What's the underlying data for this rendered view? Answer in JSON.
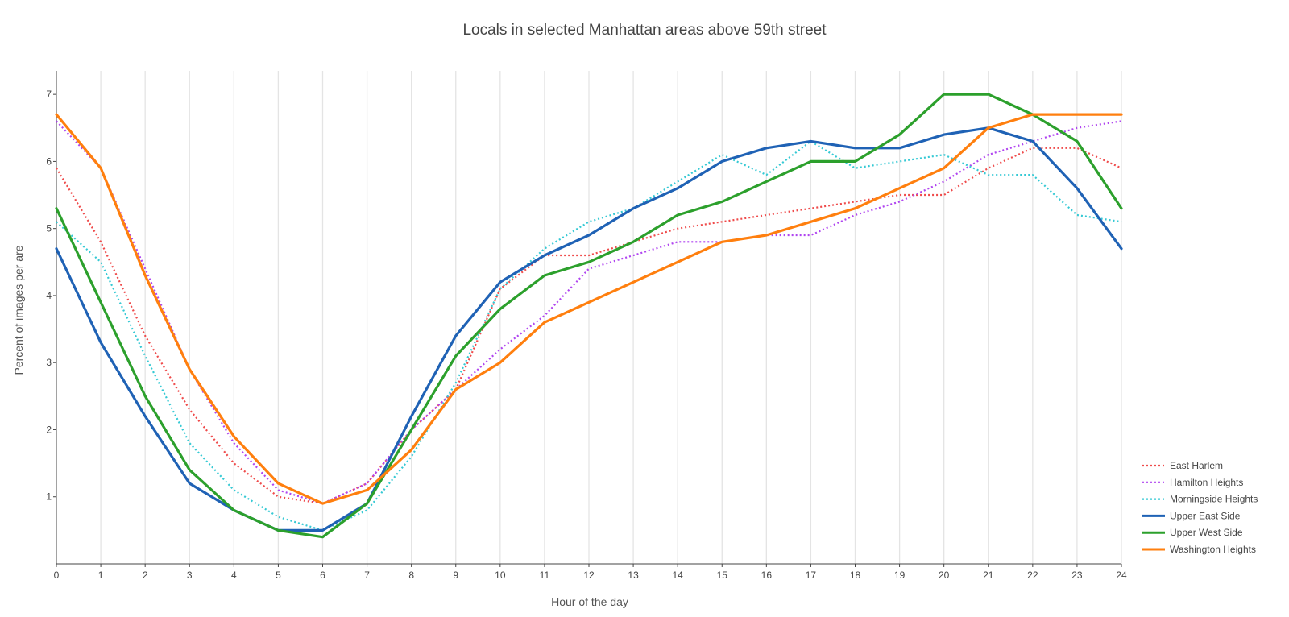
{
  "chart_data": {
    "type": "line",
    "title": "Locals in selected Manhattan areas above 59th street",
    "xlabel": "Hour of the day",
    "ylabel": "Percent of images per are",
    "xlim": [
      0,
      24
    ],
    "ylim": [
      0,
      7.35
    ],
    "x": [
      0,
      1,
      2,
      3,
      4,
      5,
      6,
      7,
      8,
      9,
      10,
      11,
      12,
      13,
      14,
      15,
      16,
      17,
      18,
      19,
      20,
      21,
      22,
      23,
      24
    ],
    "x_ticks": [
      "0",
      "1",
      "2",
      "3",
      "4",
      "5",
      "6",
      "7",
      "8",
      "9",
      "10",
      "11",
      "12",
      "13",
      "14",
      "15",
      "16",
      "17",
      "18",
      "19",
      "20",
      "21",
      "22",
      "23",
      "24"
    ],
    "y_ticks": [
      1,
      2,
      3,
      4,
      5,
      6,
      7
    ],
    "y_tick_labels": [
      "1",
      "2",
      "3",
      "4",
      "5",
      "6",
      "7"
    ],
    "grid": "vertical",
    "legend_position": "bottom-right",
    "series": [
      {
        "name": "East Harlem",
        "color": "#ef4b4b",
        "dash": "dotted",
        "values": [
          5.9,
          4.8,
          3.4,
          2.3,
          1.5,
          1.0,
          0.9,
          1.2,
          2.0,
          2.6,
          4.1,
          4.6,
          4.6,
          4.8,
          5.0,
          5.1,
          5.2,
          5.3,
          5.4,
          5.5,
          5.5,
          5.9,
          6.2,
          6.2,
          5.9
        ]
      },
      {
        "name": "Hamilton Heights",
        "color": "#b045f0",
        "dash": "dotted",
        "values": [
          6.6,
          5.9,
          4.4,
          2.9,
          1.8,
          1.1,
          0.9,
          1.2,
          2.0,
          2.6,
          3.2,
          3.7,
          4.4,
          4.6,
          4.8,
          4.8,
          4.9,
          4.9,
          5.2,
          5.4,
          5.7,
          6.1,
          6.3,
          6.5,
          6.6
        ]
      },
      {
        "name": "Morningside Heights",
        "color": "#35c9d4",
        "dash": "dotted",
        "values": [
          5.1,
          4.5,
          3.1,
          1.8,
          1.1,
          0.7,
          0.5,
          0.8,
          1.6,
          2.7,
          4.1,
          4.7,
          5.1,
          5.3,
          5.7,
          6.1,
          5.8,
          6.3,
          5.9,
          6.0,
          6.1,
          5.8,
          5.8,
          5.2,
          5.1
        ]
      },
      {
        "name": "Upper East Side",
        "color": "#1f62b5",
        "dash": "solid",
        "values": [
          4.7,
          3.3,
          2.2,
          1.2,
          0.8,
          0.5,
          0.5,
          0.9,
          2.2,
          3.4,
          4.2,
          4.6,
          4.9,
          5.3,
          5.6,
          6.0,
          6.2,
          6.3,
          6.2,
          6.2,
          6.4,
          6.5,
          6.3,
          5.6,
          4.7
        ]
      },
      {
        "name": "Upper West Side",
        "color": "#2ca02c",
        "dash": "solid",
        "values": [
          5.3,
          3.9,
          2.5,
          1.4,
          0.8,
          0.5,
          0.4,
          0.9,
          2.0,
          3.1,
          3.8,
          4.3,
          4.5,
          4.8,
          5.2,
          5.4,
          5.7,
          6.0,
          6.0,
          6.4,
          7.0,
          7.0,
          6.7,
          6.3,
          5.3
        ]
      },
      {
        "name": "Washington Heights",
        "color": "#ff7f0e",
        "dash": "solid",
        "values": [
          6.7,
          5.9,
          4.3,
          2.9,
          1.9,
          1.2,
          0.9,
          1.1,
          1.7,
          2.6,
          3.0,
          3.6,
          3.9,
          4.2,
          4.5,
          4.8,
          4.9,
          5.1,
          5.3,
          5.6,
          5.9,
          6.5,
          6.7,
          6.7,
          6.7
        ]
      }
    ]
  }
}
